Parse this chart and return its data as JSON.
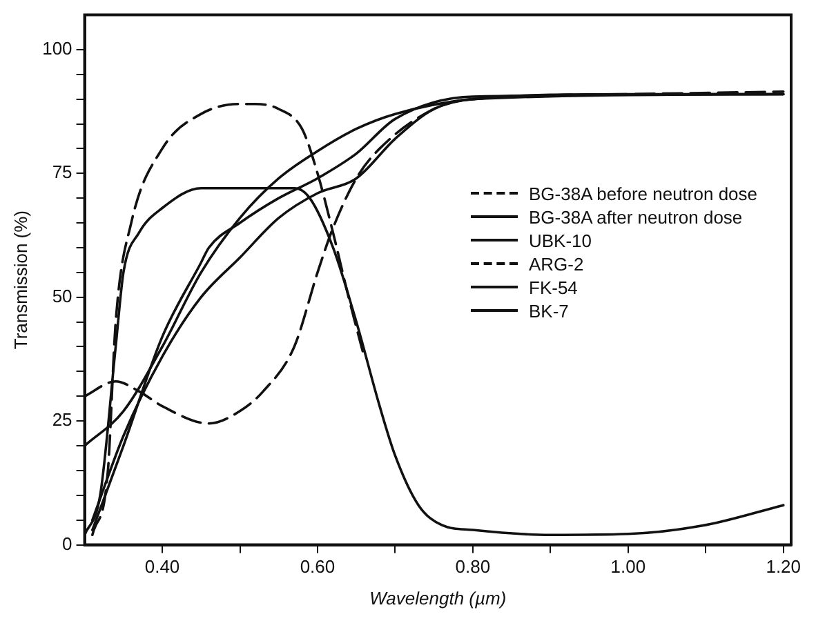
{
  "chart_data": {
    "type": "line",
    "xlabel": "Wavelength (µm)",
    "ylabel": "Transmission (%)",
    "xlim": [
      0.3,
      1.21
    ],
    "ylim": [
      0,
      107
    ],
    "xticks": [
      {
        "value": 0.4,
        "label": "0.40"
      },
      {
        "value": 0.5,
        "label": null
      },
      {
        "value": 0.6,
        "label": "0.60"
      },
      {
        "value": 0.7,
        "label": null
      },
      {
        "value": 0.8,
        "label": "0.80"
      },
      {
        "value": 0.9,
        "label": null
      },
      {
        "value": 1.0,
        "label": "1.00"
      },
      {
        "value": 1.1,
        "label": null
      },
      {
        "value": 1.2,
        "label": "1.20"
      }
    ],
    "yticks": [
      0,
      {
        "value": 5,
        "label": null
      },
      {
        "value": 10,
        "label": null
      },
      {
        "value": 15,
        "label": null
      },
      {
        "value": 20,
        "label": null
      },
      25,
      {
        "value": 30,
        "label": null
      },
      {
        "value": 35,
        "label": null
      },
      {
        "value": 40,
        "label": null
      },
      {
        "value": 45,
        "label": null
      },
      50,
      {
        "value": 55,
        "label": null
      },
      {
        "value": 60,
        "label": null
      },
      {
        "value": 65,
        "label": null
      },
      {
        "value": 70,
        "label": null
      },
      75,
      {
        "value": 80,
        "label": null
      },
      {
        "value": 85,
        "label": null
      },
      {
        "value": 90,
        "label": null
      },
      {
        "value": 95,
        "label": null
      },
      100
    ],
    "grid": false,
    "legend": "right",
    "marker": "none",
    "series": [
      {
        "name": "BG-38A before neutron dose",
        "color": "#111111",
        "line_style": "dashed",
        "x": [
          0.31,
          0.33,
          0.34,
          0.36,
          0.4,
          0.45,
          0.5,
          0.52,
          0.55,
          0.58,
          0.6,
          0.62,
          0.64,
          0.66
        ],
        "values": [
          2,
          15,
          45,
          65,
          80,
          87,
          89,
          89,
          88,
          84,
          75,
          63,
          50,
          38
        ]
      },
      {
        "name": "BG-38A after neutron dose",
        "color": "#111111",
        "line_style": "solid",
        "x": [
          0.3,
          0.32,
          0.34,
          0.35,
          0.37,
          0.4,
          0.45,
          0.57,
          0.59,
          0.62,
          0.65,
          0.68,
          0.7,
          0.73,
          0.76,
          0.8,
          0.9,
          1.0,
          1.1,
          1.2
        ],
        "values": [
          2,
          10,
          40,
          55,
          63,
          68,
          72,
          72,
          70,
          60,
          45,
          28,
          18,
          8,
          4,
          3,
          2,
          2.2,
          4,
          8
        ]
      },
      {
        "name": "UBK-10",
        "color": "#111111",
        "line_style": "solid",
        "x": [
          0.3,
          0.35,
          0.4,
          0.45,
          0.5,
          0.55,
          0.6,
          0.65,
          0.7,
          0.8,
          1.0,
          1.2
        ],
        "values": [
          20,
          27,
          40,
          55,
          66,
          74,
          79.5,
          84,
          87,
          90,
          91,
          91
        ]
      },
      {
        "name": "ARG-2",
        "color": "#111111",
        "line_style": "dashed",
        "x": [
          0.3,
          0.34,
          0.37,
          0.4,
          0.46,
          0.5,
          0.53,
          0.57,
          0.6,
          0.62,
          0.65,
          0.68,
          0.75,
          0.8,
          1.0,
          1.2
        ],
        "values": [
          30,
          33,
          31,
          28,
          24.5,
          27,
          31,
          40,
          55,
          64,
          74,
          80,
          88,
          90,
          91,
          91.5
        ]
      },
      {
        "name": "FK-54",
        "color": "#111111",
        "line_style": "solid",
        "x": [
          0.31,
          0.35,
          0.4,
          0.45,
          0.46,
          0.5,
          0.55,
          0.6,
          0.65,
          0.7,
          0.8,
          1.2
        ],
        "values": [
          3,
          20,
          42,
          57,
          60,
          65,
          70,
          74,
          79,
          86,
          90.5,
          91
        ]
      },
      {
        "name": "BK-7",
        "color": "#111111",
        "line_style": "solid",
        "x": [
          0.31,
          0.35,
          0.4,
          0.45,
          0.5,
          0.55,
          0.6,
          0.65,
          0.7,
          0.75,
          0.8,
          1.2
        ],
        "values": [
          5,
          22,
          38,
          50,
          58,
          66,
          71,
          74,
          82,
          88,
          90,
          91
        ]
      }
    ]
  }
}
